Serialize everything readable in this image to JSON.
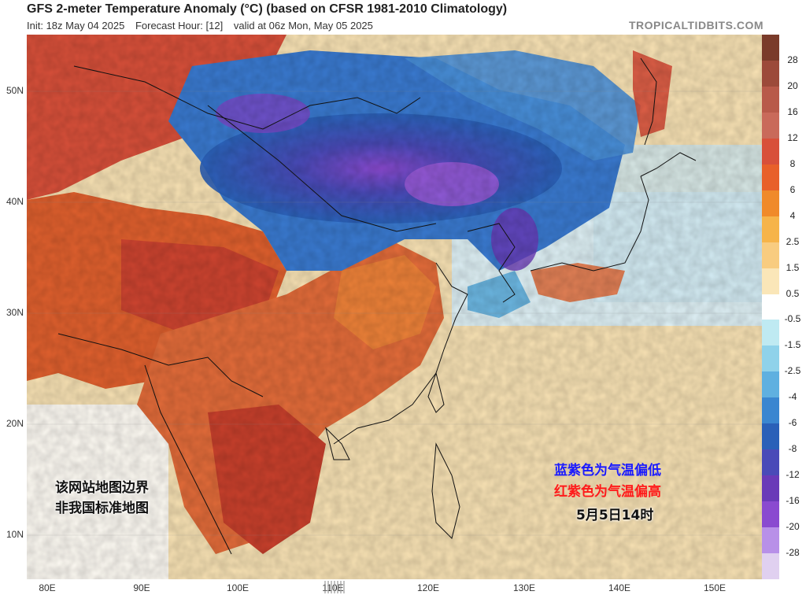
{
  "header": {
    "title": "GFS 2-meter Temperature Anomaly (°C) (based on CFSR 1981-2010 Climatology)",
    "init": "Init: 18z May 04 2025",
    "forecast_hour": "Forecast Hour: [12]",
    "valid": "valid at 06z Mon, May 05 2025",
    "brand": "TROPICALTIDBITS.COM"
  },
  "map": {
    "lat_labels": [
      "50N",
      "40N",
      "30N",
      "20N",
      "10N"
    ],
    "lon_labels": [
      "80E",
      "90E",
      "100E",
      "110E",
      "120E",
      "130E",
      "140E",
      "150E"
    ]
  },
  "colorbar": {
    "labels": [
      "28",
      "20",
      "16",
      "12",
      "8",
      "6",
      "4",
      "2.5",
      "1.5",
      "0.5",
      "-0.5",
      "-1.5",
      "-2.5",
      "-4",
      "-6",
      "-8",
      "-12",
      "-16",
      "-20",
      "-28"
    ],
    "colors": [
      "#7a3b2a",
      "#9c4a3a",
      "#b85a4a",
      "#c96a5a",
      "#d8503a",
      "#e8602a",
      "#f08a2a",
      "#f6b44a",
      "#f8cc80",
      "#fae6b8",
      "#ffffff",
      "#bfeaf2",
      "#8fd2ea",
      "#5fb0e0",
      "#3a86d0",
      "#2a60b8",
      "#4a4ab8",
      "#6a3ab8",
      "#8a4ad0",
      "#b890e8",
      "#e0d0f0"
    ]
  },
  "overlays": {
    "disclaimer_line1": "该网站地图边界",
    "disclaimer_line2": "非我国标准地图",
    "legend_blue": "蓝紫色为气温偏低",
    "legend_red": "红紫色为气温偏高",
    "date": "5月5日14时"
  }
}
